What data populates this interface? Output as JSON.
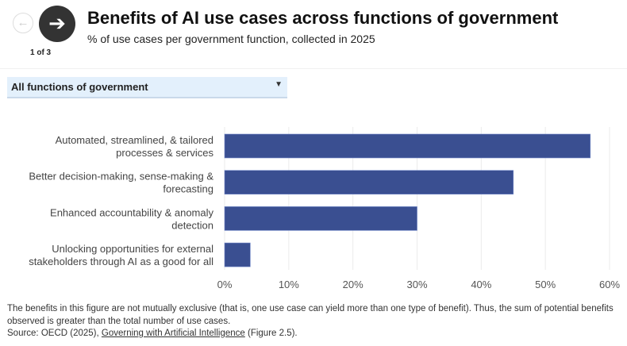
{
  "header": {
    "title": "Benefits of AI use cases across functions of government",
    "subtitle": "% of use cases per government function, collected in 2025",
    "pager": "1 of 3"
  },
  "selector": {
    "selected": "All functions of government"
  },
  "chart_data": {
    "type": "bar",
    "orientation": "horizontal",
    "categories": [
      [
        "Automated, streamlined, & tailored",
        "processes & services"
      ],
      [
        "Better decision-making, sense-making &",
        "forecasting"
      ],
      [
        "Enhanced accountability & anomaly",
        "detection"
      ],
      [
        "Unlocking opportunities for external",
        "stakeholders through AI as a good for all"
      ]
    ],
    "values": [
      57,
      45,
      30,
      4
    ],
    "xlim": [
      0,
      60
    ],
    "xticks": [
      "0%",
      "10%",
      "20%",
      "30%",
      "40%",
      "50%",
      "60%"
    ],
    "grid": true,
    "bar_color": "#3a4f91"
  },
  "footer": {
    "note": "The benefits in this figure are not mutually exclusive (that is, one use case can yield more than one type of benefit). Thus, the sum of potential benefits observed is greater than the total number of use cases.",
    "source_prefix": "Source: OECD (2025), ",
    "source_link": "Governing with Artificial Intelligence",
    "source_suffix": " (Figure 2.5)."
  }
}
